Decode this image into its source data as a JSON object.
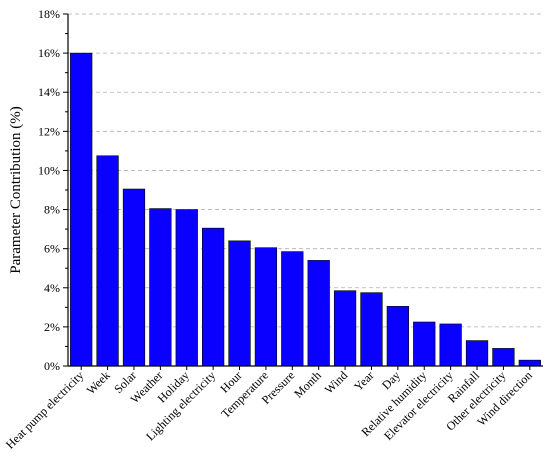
{
  "chart_data": {
    "type": "bar",
    "title": "",
    "xlabel": "",
    "ylabel": "Parameter Contribution (%)",
    "ylim": [
      0,
      18
    ],
    "yticks": [
      0,
      2,
      4,
      6,
      8,
      10,
      12,
      14,
      16,
      18
    ],
    "ytick_format": "{v}%",
    "grid": "horizontal-dashed",
    "legend": "none",
    "bar_color": "#0A00FF",
    "categories": [
      "Heat pump electricity",
      "Week",
      "Solar",
      "Weather",
      "Holiday",
      "Lighting electricity",
      "Hour",
      "Temperature",
      "Pressure",
      "Month",
      "Wind",
      "Year",
      "Day",
      "Relative humidity",
      "Elevator electricity",
      "Rainfall",
      "Other electricity",
      "Wind direction"
    ],
    "values": [
      16.0,
      10.75,
      9.05,
      8.05,
      8.0,
      7.05,
      6.4,
      6.05,
      5.85,
      5.4,
      3.85,
      3.75,
      3.05,
      2.25,
      2.15,
      1.3,
      0.9,
      0.3
    ]
  }
}
